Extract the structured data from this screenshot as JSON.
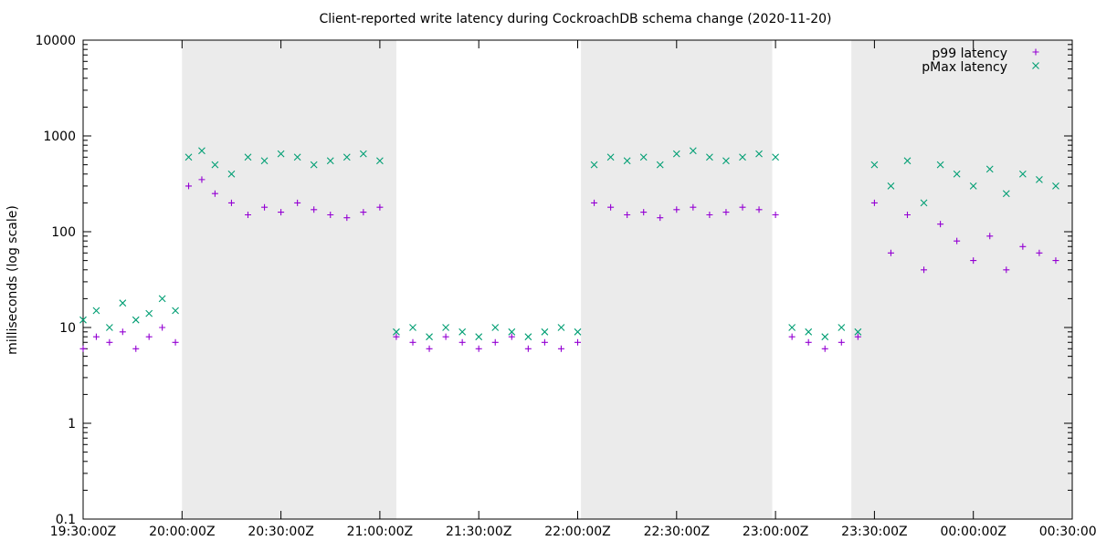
{
  "chart_data": {
    "type": "scatter",
    "title": "Client-reported write latency during CockroachDB schema change (2020-11-20)",
    "xlabel": "",
    "ylabel": "milliseconds (log scale)",
    "y_scale": "log",
    "ylim": [
      0.1,
      10000
    ],
    "y_ticks": [
      0.1,
      1,
      10,
      100,
      1000,
      10000
    ],
    "y_tick_labels": [
      "0.1",
      "1",
      "10",
      "100",
      "1000",
      "10000"
    ],
    "xlim": [
      "2020-11-20T19:30:00Z",
      "2020-11-21T00:30:00Z"
    ],
    "x_ticks": [
      "2020-11-20T19:30:00Z",
      "2020-11-20T20:00:00Z",
      "2020-11-20T20:30:00Z",
      "2020-11-20T21:00:00Z",
      "2020-11-20T21:30:00Z",
      "2020-11-20T22:00:00Z",
      "2020-11-20T22:30:00Z",
      "2020-11-20T23:00:00Z",
      "2020-11-20T23:30:00Z",
      "2020-11-21T00:00:00Z",
      "2020-11-21T00:30:00Z"
    ],
    "x_tick_labels": [
      "19:30:00Z",
      "20:00:00Z",
      "20:30:00Z",
      "21:00:00Z",
      "21:30:00Z",
      "22:00:00Z",
      "22:30:00Z",
      "23:00:00Z",
      "23:30:00Z",
      "00:00:00Z",
      "00:30:00Z"
    ],
    "shaded_intervals": [
      [
        "2020-11-20T20:00:00Z",
        "2020-11-20T21:05:00Z"
      ],
      [
        "2020-11-20T22:01:00Z",
        "2020-11-20T22:59:00Z"
      ],
      [
        "2020-11-20T23:23:00Z",
        "2020-11-21T00:30:00Z"
      ]
    ],
    "shade_color": "#ebebeb",
    "grid": false,
    "legend": "top-right",
    "series": [
      {
        "name": "p99 latency",
        "marker": "+",
        "color": "#9400d3",
        "x": [
          "2020-11-20T19:30:00Z",
          "2020-11-20T19:34:00Z",
          "2020-11-20T19:38:00Z",
          "2020-11-20T19:42:00Z",
          "2020-11-20T19:46:00Z",
          "2020-11-20T19:50:00Z",
          "2020-11-20T19:54:00Z",
          "2020-11-20T19:58:00Z",
          "2020-11-20T20:02:00Z",
          "2020-11-20T20:06:00Z",
          "2020-11-20T20:10:00Z",
          "2020-11-20T20:15:00Z",
          "2020-11-20T20:20:00Z",
          "2020-11-20T20:25:00Z",
          "2020-11-20T20:30:00Z",
          "2020-11-20T20:35:00Z",
          "2020-11-20T20:40:00Z",
          "2020-11-20T20:45:00Z",
          "2020-11-20T20:50:00Z",
          "2020-11-20T20:55:00Z",
          "2020-11-20T21:00:00Z",
          "2020-11-20T21:05:00Z",
          "2020-11-20T21:10:00Z",
          "2020-11-20T21:15:00Z",
          "2020-11-20T21:20:00Z",
          "2020-11-20T21:25:00Z",
          "2020-11-20T21:30:00Z",
          "2020-11-20T21:35:00Z",
          "2020-11-20T21:40:00Z",
          "2020-11-20T21:45:00Z",
          "2020-11-20T21:50:00Z",
          "2020-11-20T21:55:00Z",
          "2020-11-20T22:00:00Z",
          "2020-11-20T22:05:00Z",
          "2020-11-20T22:10:00Z",
          "2020-11-20T22:15:00Z",
          "2020-11-20T22:20:00Z",
          "2020-11-20T22:25:00Z",
          "2020-11-20T22:30:00Z",
          "2020-11-20T22:35:00Z",
          "2020-11-20T22:40:00Z",
          "2020-11-20T22:45:00Z",
          "2020-11-20T22:50:00Z",
          "2020-11-20T22:55:00Z",
          "2020-11-20T23:00:00Z",
          "2020-11-20T23:05:00Z",
          "2020-11-20T23:10:00Z",
          "2020-11-20T23:15:00Z",
          "2020-11-20T23:20:00Z",
          "2020-11-20T23:25:00Z",
          "2020-11-20T23:30:00Z",
          "2020-11-20T23:35:00Z",
          "2020-11-20T23:40:00Z",
          "2020-11-20T23:45:00Z",
          "2020-11-20T23:50:00Z",
          "2020-11-20T23:55:00Z",
          "2020-11-21T00:00:00Z",
          "2020-11-21T00:05:00Z",
          "2020-11-21T00:10:00Z",
          "2020-11-21T00:15:00Z",
          "2020-11-21T00:20:00Z",
          "2020-11-21T00:25:00Z"
        ],
        "y": [
          6,
          8,
          7,
          9,
          6,
          8,
          10,
          7,
          300,
          350,
          250,
          200,
          150,
          180,
          160,
          200,
          170,
          150,
          140,
          160,
          180,
          8,
          7,
          6,
          8,
          7,
          6,
          7,
          8,
          6,
          7,
          6,
          7,
          200,
          180,
          150,
          160,
          140,
          170,
          180,
          150,
          160,
          180,
          170,
          150,
          8,
          7,
          6,
          7,
          8,
          200,
          60,
          150,
          40,
          120,
          80,
          50,
          90,
          40,
          70,
          60,
          50
        ]
      },
      {
        "name": "pMax latency",
        "marker": "x",
        "color": "#009e73",
        "x": [
          "2020-11-20T19:30:00Z",
          "2020-11-20T19:34:00Z",
          "2020-11-20T19:38:00Z",
          "2020-11-20T19:42:00Z",
          "2020-11-20T19:46:00Z",
          "2020-11-20T19:50:00Z",
          "2020-11-20T19:54:00Z",
          "2020-11-20T19:58:00Z",
          "2020-11-20T20:02:00Z",
          "2020-11-20T20:06:00Z",
          "2020-11-20T20:10:00Z",
          "2020-11-20T20:15:00Z",
          "2020-11-20T20:20:00Z",
          "2020-11-20T20:25:00Z",
          "2020-11-20T20:30:00Z",
          "2020-11-20T20:35:00Z",
          "2020-11-20T20:40:00Z",
          "2020-11-20T20:45:00Z",
          "2020-11-20T20:50:00Z",
          "2020-11-20T20:55:00Z",
          "2020-11-20T21:00:00Z",
          "2020-11-20T21:05:00Z",
          "2020-11-20T21:10:00Z",
          "2020-11-20T21:15:00Z",
          "2020-11-20T21:20:00Z",
          "2020-11-20T21:25:00Z",
          "2020-11-20T21:30:00Z",
          "2020-11-20T21:35:00Z",
          "2020-11-20T21:40:00Z",
          "2020-11-20T21:45:00Z",
          "2020-11-20T21:50:00Z",
          "2020-11-20T21:55:00Z",
          "2020-11-20T22:00:00Z",
          "2020-11-20T22:05:00Z",
          "2020-11-20T22:10:00Z",
          "2020-11-20T22:15:00Z",
          "2020-11-20T22:20:00Z",
          "2020-11-20T22:25:00Z",
          "2020-11-20T22:30:00Z",
          "2020-11-20T22:35:00Z",
          "2020-11-20T22:40:00Z",
          "2020-11-20T22:45:00Z",
          "2020-11-20T22:50:00Z",
          "2020-11-20T22:55:00Z",
          "2020-11-20T23:00:00Z",
          "2020-11-20T23:05:00Z",
          "2020-11-20T23:10:00Z",
          "2020-11-20T23:15:00Z",
          "2020-11-20T23:20:00Z",
          "2020-11-20T23:25:00Z",
          "2020-11-20T23:30:00Z",
          "2020-11-20T23:35:00Z",
          "2020-11-20T23:40:00Z",
          "2020-11-20T23:45:00Z",
          "2020-11-20T23:50:00Z",
          "2020-11-20T23:55:00Z",
          "2020-11-21T00:00:00Z",
          "2020-11-21T00:05:00Z",
          "2020-11-21T00:10:00Z",
          "2020-11-21T00:15:00Z",
          "2020-11-21T00:20:00Z",
          "2020-11-21T00:25:00Z"
        ],
        "y": [
          12,
          15,
          10,
          18,
          12,
          14,
          20,
          15,
          600,
          700,
          500,
          400,
          600,
          550,
          650,
          600,
          500,
          550,
          600,
          650,
          550,
          9,
          10,
          8,
          10,
          9,
          8,
          10,
          9,
          8,
          9,
          10,
          9,
          500,
          600,
          550,
          600,
          500,
          650,
          700,
          600,
          550,
          600,
          650,
          600,
          10,
          9,
          8,
          10,
          9,
          500,
          300,
          550,
          200,
          500,
          400,
          300,
          450,
          250,
          400,
          350,
          300
        ]
      }
    ]
  }
}
